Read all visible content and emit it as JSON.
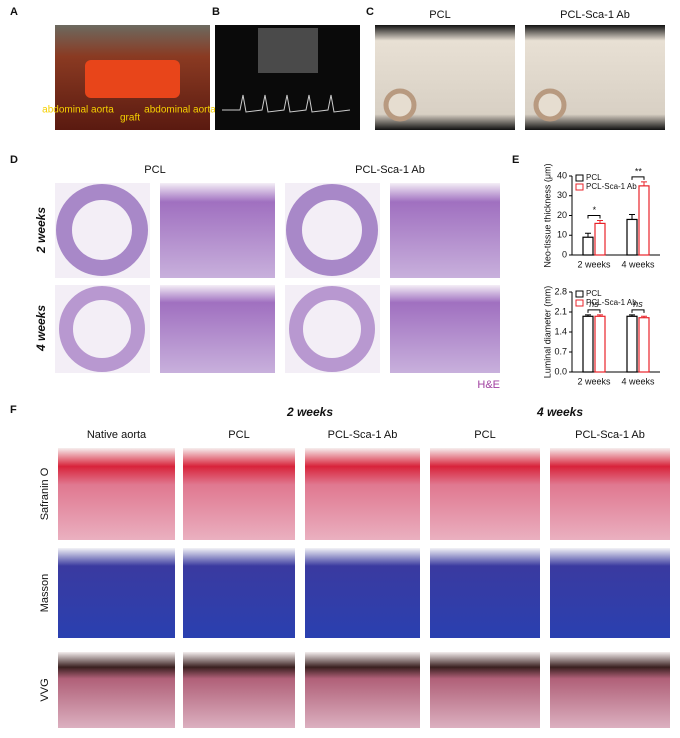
{
  "panels": {
    "letters": [
      "A",
      "B",
      "C",
      "D",
      "E",
      "F"
    ],
    "a": {
      "labels": [
        "abdominal aorta",
        "graft",
        "abdominal aorta"
      ]
    },
    "c": {
      "columns": [
        "PCL",
        "PCL-Sca-1 Ab"
      ]
    },
    "d": {
      "columns": [
        "PCL",
        "PCL-Sca-1 Ab"
      ],
      "rows": [
        "2 weeks",
        "4 weeks"
      ],
      "stain": "H&E"
    },
    "f": {
      "groups": [
        "2 weeks",
        "4 weeks"
      ],
      "columns": [
        "Native aorta",
        "PCL",
        "PCL-Sca-1 Ab",
        "PCL",
        "PCL-Sca-1 Ab"
      ],
      "rows": [
        "Safranin O",
        "Masson",
        "VVG"
      ]
    }
  },
  "chart_data": [
    {
      "type": "bar",
      "y_label": "Neo-tissue thickness (μm)",
      "categories": [
        "2 weeks",
        "4 weeks"
      ],
      "series": [
        {
          "name": "PCL",
          "color": "#000000",
          "values": [
            9,
            18
          ],
          "errors": [
            2,
            2.5
          ]
        },
        {
          "name": "PCL-Sca-1 Ab",
          "color": "#e8232a",
          "values": [
            16,
            35
          ],
          "errors": [
            1.5,
            2
          ]
        }
      ],
      "significance": [
        "*",
        "**"
      ],
      "ylim": [
        0,
        40
      ],
      "yticks": [
        0,
        10,
        20,
        30,
        40
      ],
      "legend": "top-left"
    },
    {
      "type": "bar",
      "y_label": "Luminal diameter (mm)",
      "categories": [
        "2 weeks",
        "4 weeks"
      ],
      "series": [
        {
          "name": "PCL",
          "color": "#000000",
          "values": [
            1.95,
            1.95
          ],
          "errors": [
            0.05,
            0.05
          ]
        },
        {
          "name": "PCL-Sca-1 Ab",
          "color": "#e8232a",
          "values": [
            1.95,
            1.9
          ],
          "errors": [
            0.05,
            0.05
          ]
        }
      ],
      "significance": [
        "ns",
        "ns"
      ],
      "ylim": [
        0,
        2.8
      ],
      "yticks": [
        {
          "value": 0,
          "label": "0.0"
        },
        0.7,
        1.4,
        2.1,
        2.8
      ],
      "legend": "top-left"
    }
  ]
}
